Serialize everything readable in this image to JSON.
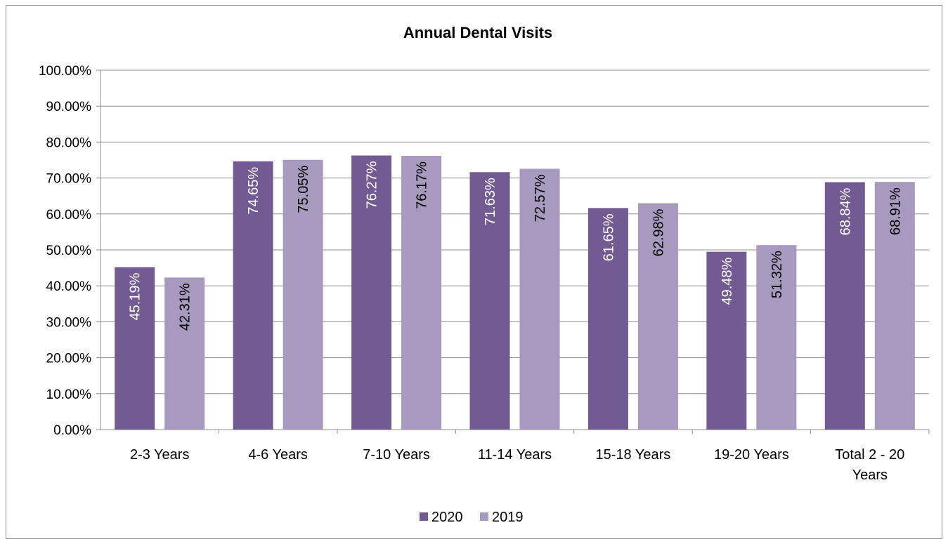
{
  "chart_data": {
    "type": "bar",
    "title": "Annual Dental Visits",
    "categories": [
      "2-3 Years",
      "4-6 Years",
      "7-10 Years",
      "11-14 Years",
      "15-18 Years",
      "19-20 Years",
      [
        "Total 2 - 20",
        "Years"
      ]
    ],
    "series": [
      {
        "name": "2020",
        "color": "#725b93",
        "values": [
          45.19,
          74.65,
          76.27,
          71.63,
          61.65,
          49.48,
          68.84
        ],
        "labels": [
          "45.19%",
          "74.65%",
          "76.27%",
          "71.63%",
          "61.65%",
          "49.48%",
          "68.84%"
        ],
        "label_color": "#ffffff"
      },
      {
        "name": "2019",
        "color": "#a899be",
        "values": [
          42.31,
          75.05,
          76.17,
          72.57,
          62.98,
          51.32,
          68.91
        ],
        "labels": [
          "42.31%",
          "75.05%",
          "76.17%",
          "72.57%",
          "62.98%",
          "51.32%",
          "68.91%"
        ],
        "label_color": "#000000"
      }
    ],
    "ylim": [
      0,
      100
    ],
    "yticks": [
      "0.00%",
      "10.00%",
      "20.00%",
      "30.00%",
      "40.00%",
      "50.00%",
      "60.00%",
      "70.00%",
      "80.00%",
      "90.00%",
      "100.00%"
    ],
    "grid": true,
    "legend_position": "bottom",
    "gridline_color": "#8c8c8c"
  }
}
